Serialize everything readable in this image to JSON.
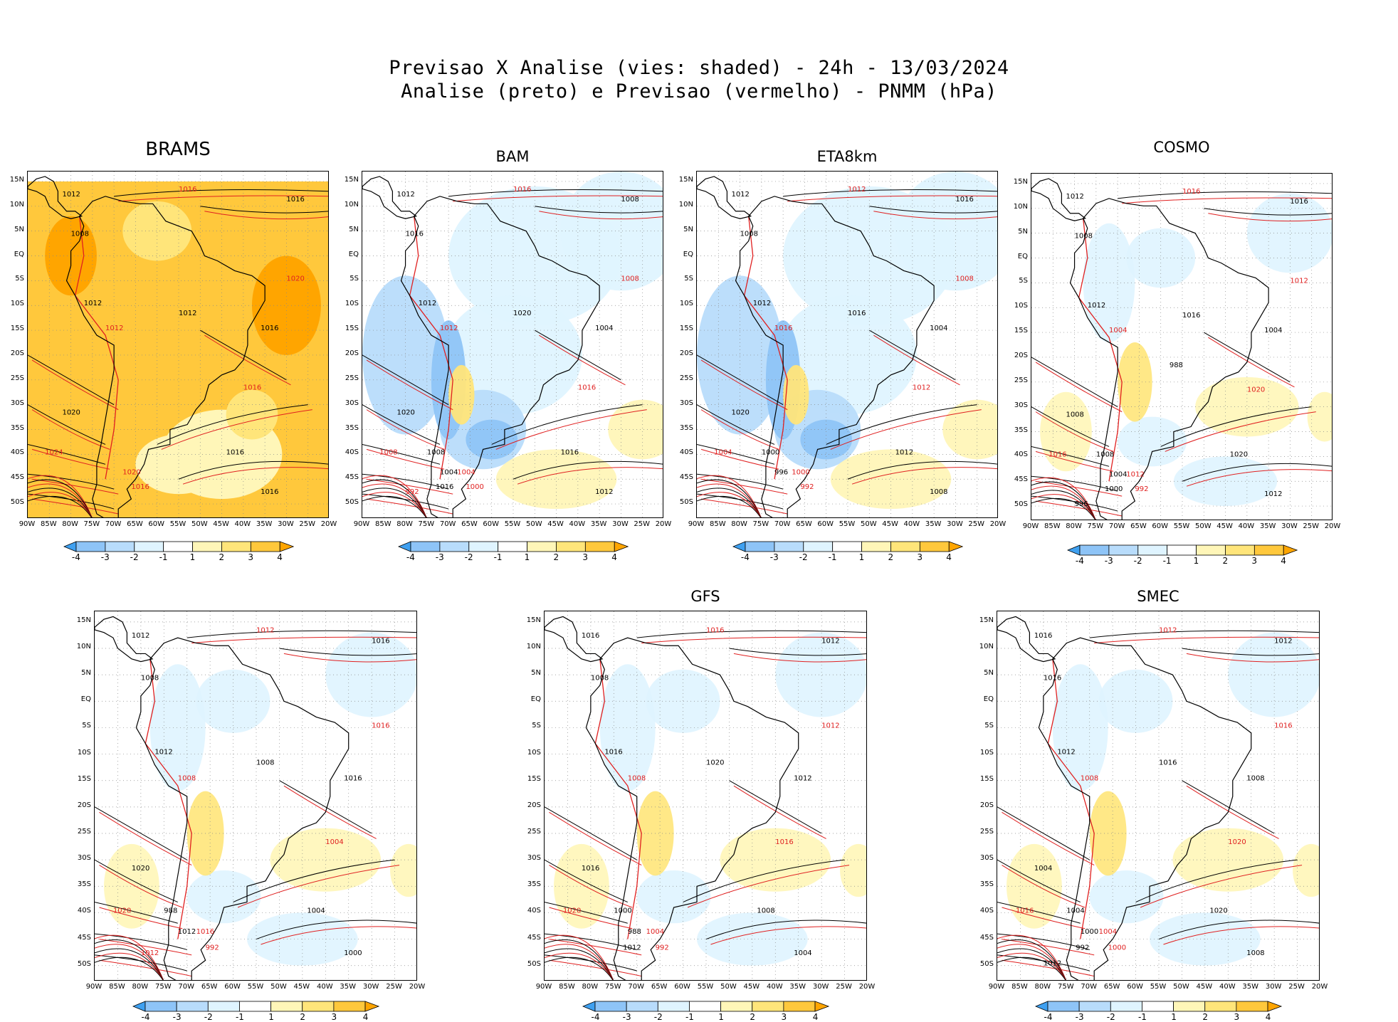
{
  "header": {
    "line1": "Previsao X Analise (vies: shaded) - 24h - 13/03/2024",
    "line2": "Analise (preto) e Previsao (vermelho) - PNMM (hPa)"
  },
  "colors": {
    "analysis_contour": "#000000",
    "forecast_contour": "#e02020",
    "bias_neg4": "#3fa0f0",
    "bias_neg3": "#8ec4f7",
    "bias_neg2": "#b8dcfb",
    "bias_neg1": "#dff4ff",
    "bias_pos1": "#fff6b8",
    "bias_pos2": "#ffe57a",
    "bias_pos3": "#ffc83c",
    "bias_pos4": "#ffa500"
  },
  "chart_data": [
    {
      "type": "heatmap",
      "panel": "BRAMS",
      "title": "BRAMS",
      "lon_range": [
        -90,
        -20
      ],
      "lat_range": [
        -53,
        17
      ],
      "dominant_bias": "positive",
      "colorbar_levels": [
        -4,
        -3,
        -2,
        -1,
        1,
        2,
        3,
        4
      ],
      "contour_labels_analysis": [
        "1012",
        "1016",
        "1008",
        "1012",
        "1016",
        "1020",
        "1012",
        "1016",
        "1016"
      ],
      "contour_labels_forecast": [
        "1016",
        "1020",
        "1012",
        "1016",
        "1024",
        "1020",
        "1016"
      ]
    },
    {
      "type": "heatmap",
      "panel": "BAM",
      "title": "BAM",
      "lon_range": [
        -90,
        -20
      ],
      "lat_range": [
        -53,
        17
      ],
      "dominant_bias": "negative",
      "colorbar_levels": [
        -4,
        -3,
        -2,
        -1,
        1,
        2,
        3,
        4
      ],
      "contour_labels_analysis": [
        "1012",
        "1008",
        "1016",
        "1012",
        "1004",
        "1020",
        "1020",
        "1016",
        "1012",
        "1008",
        "1004",
        "1016"
      ],
      "contour_labels_forecast": [
        "1016",
        "1008",
        "1012",
        "1016",
        "1008",
        "1004",
        "1000",
        "992"
      ]
    },
    {
      "type": "heatmap",
      "panel": "ETA8km",
      "title": "ETA8km",
      "lon_range": [
        -90,
        -20
      ],
      "lat_range": [
        -53,
        17
      ],
      "dominant_bias": "negative",
      "colorbar_levels": [
        -4,
        -3,
        -2,
        -1,
        1,
        2,
        3,
        4
      ],
      "contour_labels_analysis": [
        "1012",
        "1016",
        "1008",
        "1012",
        "1004",
        "1020",
        "1016",
        "1012",
        "1008",
        "1000",
        "996"
      ],
      "contour_labels_forecast": [
        "1012",
        "1008",
        "1016",
        "1012",
        "1004",
        "1000",
        "992"
      ]
    },
    {
      "type": "heatmap",
      "panel": "COSMO",
      "title": "COSMO",
      "lon_range": [
        -90,
        -20
      ],
      "lat_range": [
        -53,
        17
      ],
      "dominant_bias": "mixed",
      "colorbar_levels": [
        -4,
        -3,
        -2,
        -1,
        1,
        2,
        3,
        4
      ],
      "contour_labels_analysis": [
        "1012",
        "1016",
        "1008",
        "1012",
        "1004",
        "1008",
        "1016",
        "1020",
        "1012",
        "1008",
        "1004",
        "1000",
        "996",
        "988"
      ],
      "contour_labels_forecast": [
        "1016",
        "1012",
        "1004",
        "1020",
        "1016",
        "1012",
        "992"
      ]
    },
    {
      "type": "heatmap",
      "panel": "unnamed",
      "title": "",
      "lon_range": [
        -90,
        -20
      ],
      "lat_range": [
        -53,
        17
      ],
      "dominant_bias": "mixed",
      "colorbar_levels": [
        -4,
        -3,
        -2,
        -1,
        1,
        2,
        3,
        4
      ],
      "contour_labels_analysis": [
        "1012",
        "1016",
        "1008",
        "1012",
        "1016",
        "1020",
        "1008",
        "1004",
        "1000",
        "988",
        "1012"
      ],
      "contour_labels_forecast": [
        "1012",
        "1016",
        "1008",
        "1004",
        "1020",
        "1016",
        "992",
        "1012"
      ]
    },
    {
      "type": "heatmap",
      "panel": "GFS",
      "title": "GFS",
      "lon_range": [
        -90,
        -20
      ],
      "lat_range": [
        -53,
        17
      ],
      "dominant_bias": "near-zero",
      "colorbar_levels": [
        -4,
        -3,
        -2,
        -1,
        1,
        2,
        3,
        4
      ],
      "contour_labels_analysis": [
        "1016",
        "1012",
        "1008",
        "1016",
        "1012",
        "1016",
        "1020",
        "1008",
        "1004",
        "1000",
        "988",
        "1012"
      ],
      "contour_labels_forecast": [
        "1016",
        "1012",
        "1008",
        "1016",
        "1020",
        "1004",
        "992"
      ]
    },
    {
      "type": "heatmap",
      "panel": "SMEC",
      "title": "SMEC",
      "lon_range": [
        -90,
        -20
      ],
      "lat_range": [
        -53,
        17
      ],
      "dominant_bias": "near-zero",
      "colorbar_levels": [
        -4,
        -3,
        -2,
        -1,
        1,
        2,
        3,
        4
      ],
      "contour_labels_analysis": [
        "1016",
        "1012",
        "1016",
        "1012",
        "1008",
        "1004",
        "1016",
        "1020",
        "1008",
        "1004",
        "1000",
        "992",
        "1012"
      ],
      "contour_labels_forecast": [
        "1012",
        "1016",
        "1008",
        "1020",
        "1016",
        "1004",
        "1000"
      ]
    }
  ],
  "axes": {
    "y_ticks": [
      "15N",
      "10N",
      "5N",
      "EQ",
      "5S",
      "10S",
      "15S",
      "20S",
      "25S",
      "30S",
      "35S",
      "40S",
      "45S",
      "50S"
    ],
    "x_ticks": [
      "90W",
      "85W",
      "80W",
      "75W",
      "70W",
      "65W",
      "60W",
      "55W",
      "50W",
      "45W",
      "40W",
      "35W",
      "30W",
      "25W",
      "20W"
    ]
  }
}
